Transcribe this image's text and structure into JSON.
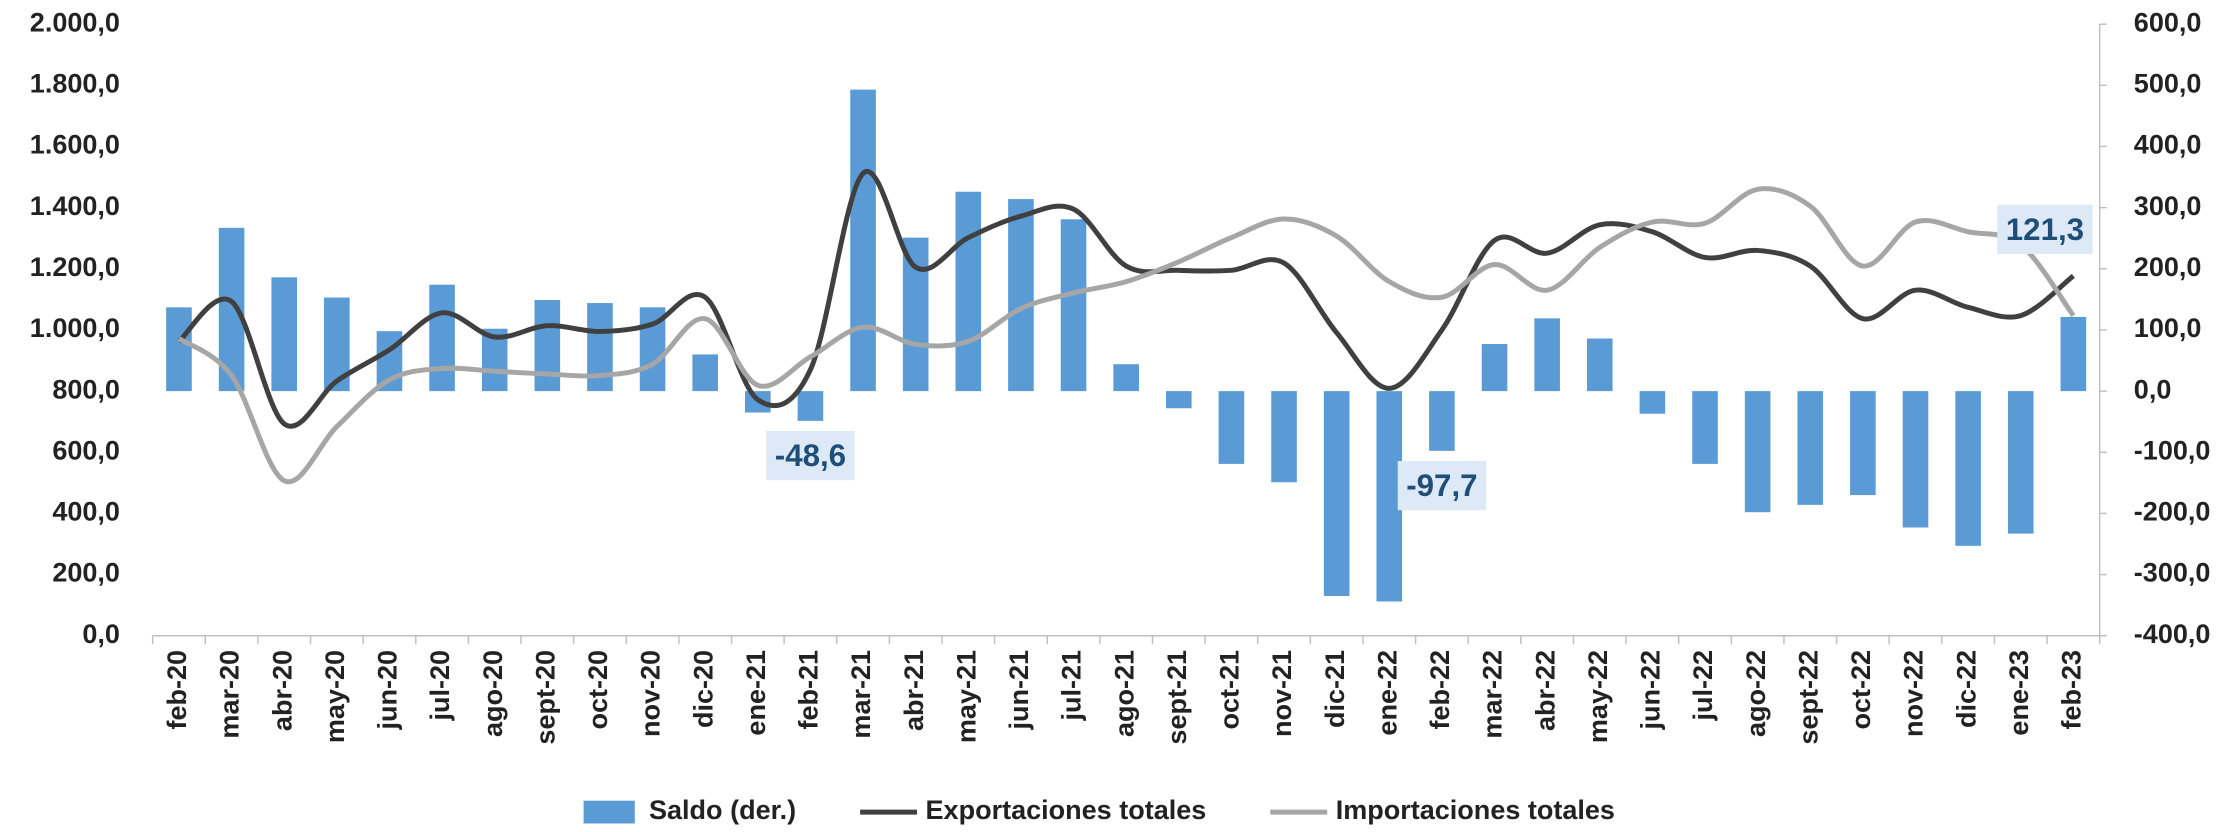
{
  "chart_data": {
    "type": "bar_line",
    "categories": [
      "feb-20",
      "mar-20",
      "abr-20",
      "may-20",
      "jun-20",
      "jul-20",
      "ago-20",
      "sept-20",
      "oct-20",
      "nov-20",
      "dic-20",
      "ene-21",
      "feb-21",
      "mar-21",
      "abr-21",
      "may-21",
      "jun-21",
      "jul-21",
      "ago-21",
      "sept-21",
      "oct-21",
      "nov-21",
      "dic-21",
      "ene-22",
      "feb-22",
      "mar-22",
      "abr-22",
      "may-22",
      "jun-22",
      "jul-22",
      "ago-22",
      "sept-22",
      "oct-22",
      "nov-22",
      "dic-22",
      "ene-23",
      "feb-23"
    ],
    "series": [
      {
        "name": "Saldo (der.)",
        "type": "bar",
        "axis": "y2",
        "color": "#5b9bd5",
        "values": [
          137,
          267,
          186,
          153,
          98,
          174,
          102,
          149,
          144,
          137,
          60,
          -35,
          -48.6,
          493,
          251,
          326,
          314,
          281,
          44,
          -28,
          -119,
          -149,
          -335,
          -344,
          -97.7,
          77,
          119,
          86,
          -37,
          -119,
          -198,
          -186,
          -170,
          -223,
          -253,
          -233,
          121.3
        ],
        "value_labels": [
          null,
          null,
          null,
          null,
          null,
          null,
          null,
          null,
          null,
          null,
          null,
          null,
          "-48,6",
          null,
          null,
          null,
          null,
          null,
          null,
          null,
          null,
          null,
          null,
          null,
          "-97,7",
          null,
          null,
          null,
          null,
          null,
          null,
          null,
          null,
          null,
          null,
          null,
          "121,3"
        ]
      },
      {
        "name": "Exportaciones totales",
        "type": "line",
        "color": "#404040",
        "values": [
          963,
          1093,
          693,
          833,
          935,
          1056,
          977,
          1014,
          995,
          1019,
          1107,
          772,
          870,
          1512,
          1205,
          1302,
          1372,
          1395,
          1209,
          1195,
          1195,
          1219,
          991,
          809,
          1000,
          1293,
          1251,
          1344,
          1321,
          1237,
          1260,
          1209,
          1037,
          1130,
          1074,
          1047,
          1177
        ]
      },
      {
        "name": "Importaciones totales",
        "type": "line",
        "color": "#a6a6a6",
        "values": [
          972,
          851,
          507,
          684,
          837,
          874,
          865,
          856,
          851,
          888,
          1037,
          819,
          912,
          1009,
          953,
          963,
          1070,
          1121,
          1158,
          1223,
          1302,
          1363,
          1307,
          1158,
          1107,
          1214,
          1130,
          1270,
          1353,
          1349,
          1460,
          1405,
          1209,
          1353,
          1321,
          1279,
          1047
        ]
      }
    ],
    "ylim": [
      0,
      2000
    ],
    "yticks": [
      {
        "value": 0,
        "label": "0,0"
      },
      {
        "value": 200,
        "label": "200,0"
      },
      {
        "value": 400,
        "label": "400,0"
      },
      {
        "value": 600,
        "label": "600,0"
      },
      {
        "value": 800,
        "label": "800,0"
      },
      {
        "value": 1000,
        "label": "1.000,0"
      },
      {
        "value": 1200,
        "label": "1.200,0"
      },
      {
        "value": 1400,
        "label": "1.400,0"
      },
      {
        "value": 1600,
        "label": "1.600,0"
      },
      {
        "value": 1800,
        "label": "1.800,0"
      },
      {
        "value": 2000,
        "label": "2.000,0"
      }
    ],
    "y2lim": [
      -400,
      600
    ],
    "y2ticks": [
      {
        "value": -400,
        "label": "-400,0"
      },
      {
        "value": -300,
        "label": "-300,0"
      },
      {
        "value": -200,
        "label": "-200,0"
      },
      {
        "value": -100,
        "label": "-100,0"
      },
      {
        "value": 0,
        "label": "0,0"
      },
      {
        "value": 100,
        "label": "100,0"
      },
      {
        "value": 200,
        "label": "200,0"
      },
      {
        "value": 300,
        "label": "300,0"
      },
      {
        "value": 400,
        "label": "400,0"
      },
      {
        "value": 500,
        "label": "500,0"
      },
      {
        "value": 600,
        "label": "600,0"
      }
    ],
    "legend": "bottom"
  }
}
